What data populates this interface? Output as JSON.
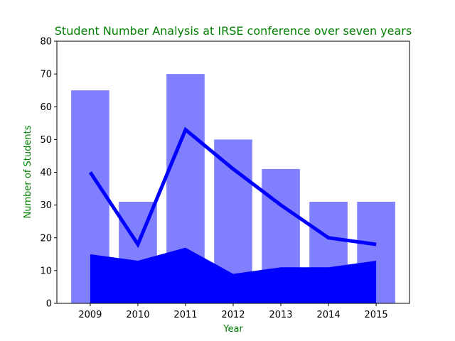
{
  "chart_data": {
    "type": "bar",
    "title": "Student Number Analysis at IRSE conference over seven years",
    "xlabel": "Year",
    "ylabel": "Number of Students",
    "text_color": "#008000",
    "categories": [
      "2009",
      "2010",
      "2011",
      "2012",
      "2013",
      "2014",
      "2015"
    ],
    "ylim": [
      0,
      80
    ],
    "yticks": [
      0,
      10,
      20,
      30,
      40,
      50,
      60,
      70,
      80
    ],
    "grid": false,
    "series": [
      {
        "type": "bar",
        "color": "#8080ff",
        "values": [
          65,
          31,
          70,
          50,
          41,
          31,
          31
        ]
      },
      {
        "type": "line",
        "color": "#0000ff",
        "values": [
          40,
          18,
          53,
          41,
          30,
          20,
          18
        ]
      },
      {
        "type": "area",
        "color": "#0000ff",
        "values": [
          15,
          13,
          17,
          9,
          11,
          11,
          13
        ]
      }
    ]
  }
}
